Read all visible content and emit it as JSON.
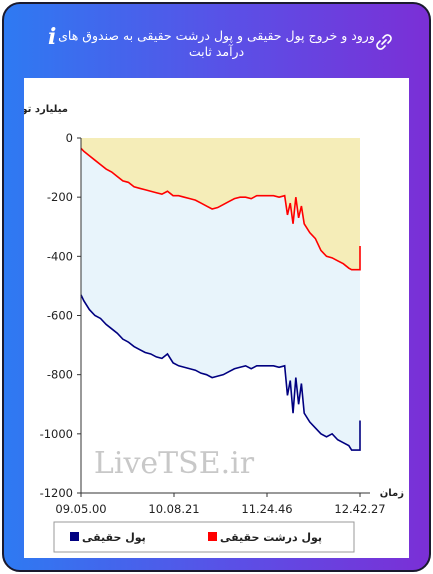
{
  "header": {
    "title": "ورود و خروج پول حقیقی و پول درشت حقیقی به صندوق های درآمد ثابت",
    "info_icon": "i",
    "link_icon": "link-icon"
  },
  "chart_data": {
    "type": "line",
    "ylabel": "میلیارد تومان",
    "xlabel": "زمان",
    "ylim": [
      -1200,
      0
    ],
    "yticks": [
      0,
      -200,
      -400,
      -600,
      -800,
      -1000,
      -1200
    ],
    "x_ticklabels": [
      "09.05.00",
      "10.08.21",
      "11.24.46",
      "12.42.27"
    ],
    "watermark": "LiveTSE.ir",
    "grid": false,
    "legend_position": "bottom",
    "series": [
      {
        "name": "پول حقیقی",
        "color": "#000080",
        "x": [
          0,
          0.01,
          0.03,
          0.05,
          0.07,
          0.09,
          0.11,
          0.13,
          0.15,
          0.17,
          0.19,
          0.21,
          0.23,
          0.25,
          0.27,
          0.29,
          0.31,
          0.33,
          0.35,
          0.37,
          0.39,
          0.41,
          0.43,
          0.45,
          0.47,
          0.49,
          0.51,
          0.53,
          0.55,
          0.57,
          0.59,
          0.61,
          0.63,
          0.65,
          0.67,
          0.69,
          0.71,
          0.73,
          0.74,
          0.75,
          0.76,
          0.77,
          0.78,
          0.79,
          0.8,
          0.82,
          0.84,
          0.86,
          0.88,
          0.9,
          0.92,
          0.94,
          0.96,
          0.97,
          0.98,
          0.99,
          1.0,
          1.0
        ],
        "values": [
          -530,
          -550,
          -580,
          -600,
          -610,
          -630,
          -645,
          -660,
          -680,
          -690,
          -705,
          -715,
          -725,
          -730,
          -740,
          -745,
          -730,
          -760,
          -770,
          -775,
          -780,
          -785,
          -795,
          -800,
          -810,
          -805,
          -800,
          -790,
          -780,
          -775,
          -770,
          -780,
          -770,
          -770,
          -770,
          -770,
          -775,
          -770,
          -870,
          -820,
          -930,
          -810,
          -900,
          -830,
          -930,
          -960,
          -980,
          -1000,
          -1010,
          -1000,
          -1020,
          -1030,
          -1040,
          -1055,
          -1055,
          -1055,
          -1055,
          -955
        ]
      },
      {
        "name": "پول درشت حقیقی",
        "color": "#ff0000",
        "x": [
          0,
          0.01,
          0.03,
          0.05,
          0.07,
          0.09,
          0.11,
          0.13,
          0.15,
          0.17,
          0.19,
          0.21,
          0.23,
          0.25,
          0.27,
          0.29,
          0.31,
          0.33,
          0.35,
          0.37,
          0.39,
          0.41,
          0.43,
          0.45,
          0.47,
          0.49,
          0.51,
          0.53,
          0.55,
          0.57,
          0.59,
          0.61,
          0.63,
          0.65,
          0.67,
          0.69,
          0.71,
          0.73,
          0.74,
          0.75,
          0.76,
          0.77,
          0.78,
          0.79,
          0.8,
          0.82,
          0.84,
          0.86,
          0.88,
          0.9,
          0.92,
          0.94,
          0.96,
          0.97,
          0.98,
          0.99,
          1.0,
          1.0
        ],
        "values": [
          -35,
          -45,
          -60,
          -75,
          -90,
          -105,
          -115,
          -130,
          -145,
          -150,
          -165,
          -170,
          -175,
          -180,
          -185,
          -190,
          -180,
          -195,
          -195,
          -200,
          -205,
          -210,
          -220,
          -230,
          -240,
          -235,
          -225,
          -215,
          -205,
          -200,
          -200,
          -205,
          -195,
          -195,
          -195,
          -195,
          -200,
          -195,
          -260,
          -220,
          -290,
          -200,
          -270,
          -230,
          -290,
          -320,
          -340,
          -380,
          -400,
          -405,
          -415,
          -425,
          -440,
          -445,
          -445,
          -445,
          -445,
          -365
        ]
      }
    ]
  }
}
